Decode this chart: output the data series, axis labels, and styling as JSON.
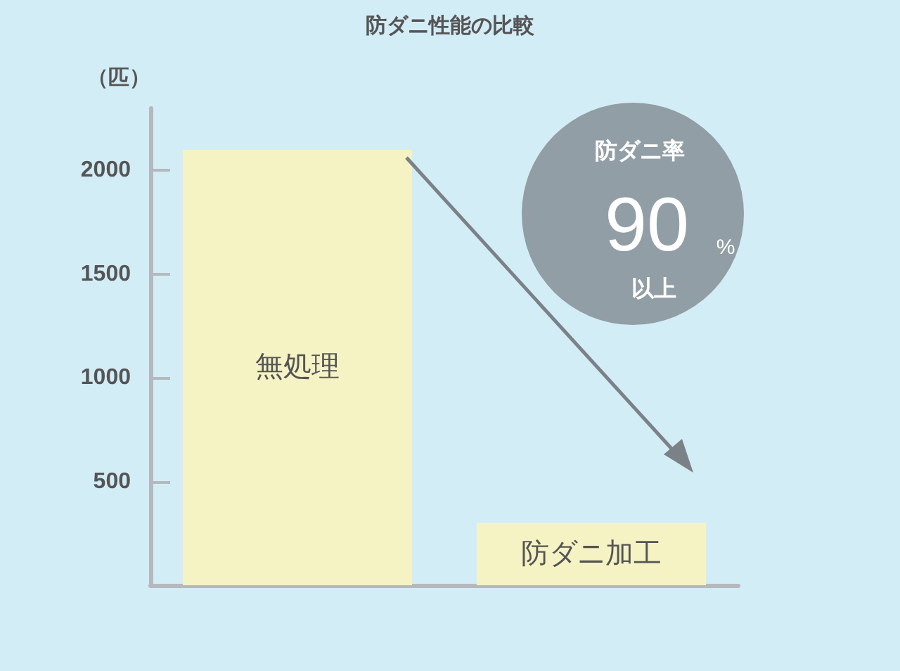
{
  "chart_data": {
    "type": "bar",
    "title": "防ダニ性能の比較",
    "ylabel": "（匹）",
    "categories": [
      "無処理",
      "防ダニ加工"
    ],
    "values": [
      2100,
      300
    ],
    "color": "#f5f3c4",
    "ylim": [
      0,
      2300
    ],
    "yticks": [
      500,
      1000,
      1500,
      2000
    ],
    "grid": false,
    "annotations": [
      "防ダニ率",
      "90",
      "%",
      "以上"
    ]
  }
}
